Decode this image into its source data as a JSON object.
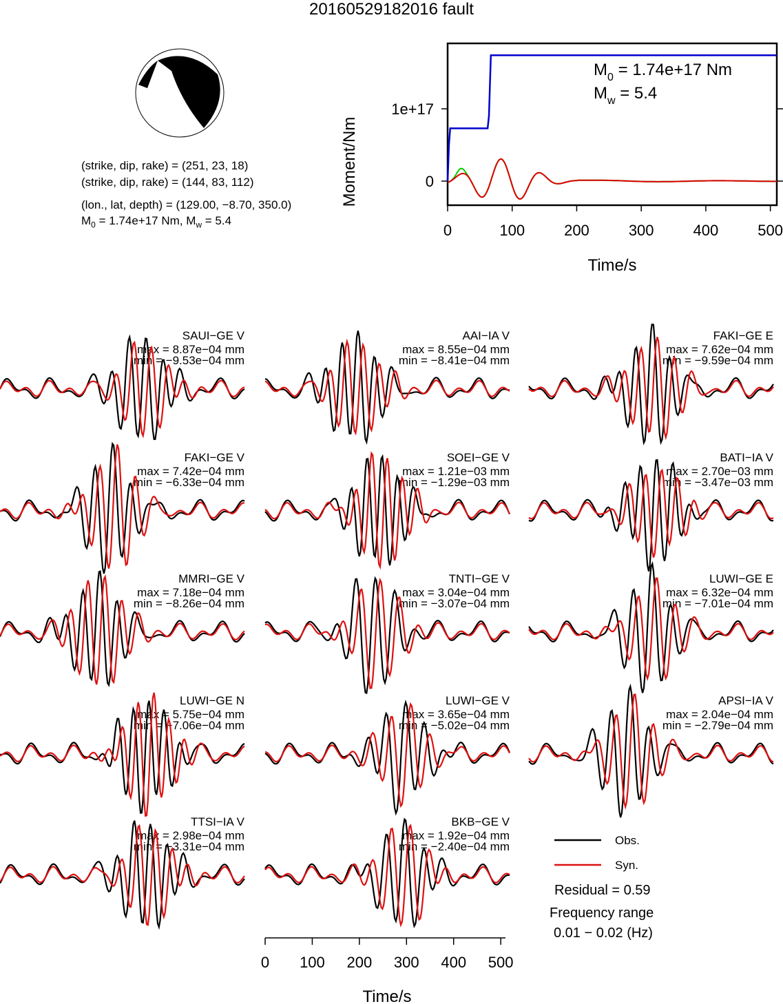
{
  "title": "20160529182016 fault",
  "mechanism": {
    "line1": "(strike, dip, rake) = (251, 23, 18)",
    "line2": "(strike, dip, rake) = (144, 83, 112)",
    "line3": "(lon., lat, depth) = (129.00, −8.70, 350.0)",
    "line4_m0": "M",
    "line4_m0_sub": "0",
    "line4_rest": " = 1.74e+17 Nm, M",
    "line4_mw_sub": "w",
    "line4_end": " = 5.4"
  },
  "moment_panel": {
    "m0_label": "M",
    "m0_sub": "0",
    "m0_value": " = 1.74e+17 Nm",
    "mw_label": "M",
    "mw_sub": "w",
    "mw_value": " = 5.4",
    "colors": {
      "moment": "#0000cc",
      "stf_red": "#dd0000",
      "stf_green": "#00cc00"
    }
  },
  "waveform_colors": {
    "obs": "#000000",
    "syn": "#dd1111"
  },
  "legend": {
    "obs": "Obs.",
    "syn": "Syn.",
    "residual": "Residual = 0.59",
    "freq_label": "Frequency range",
    "freq_value": "0.01 − 0.02 (Hz)"
  },
  "stations": [
    {
      "name": "SAUI−GE V",
      "max": "max = 8.87e−04 mm",
      "min": "min = −9.53e−04 mm"
    },
    {
      "name": "AAI−IA V",
      "max": "max = 8.55e−04 mm",
      "min": "min = −8.41e−04 mm"
    },
    {
      "name": "FAKI−GE E",
      "max": "max = 7.62e−04 mm",
      "min": "min = −9.59e−04 mm"
    },
    {
      "name": "FAKI−GE V",
      "max": "max = 7.42e−04 mm",
      "min": "min = −6.33e−04 mm"
    },
    {
      "name": "SOEI−GE V",
      "max": "max = 1.21e−03 mm",
      "min": "min = −1.29e−03 mm"
    },
    {
      "name": "BATI−IA V",
      "max": "max = 2.70e−03 mm",
      "min": "min = −3.47e−03 mm"
    },
    {
      "name": "MMRI−GE V",
      "max": "max = 7.18e−04 mm",
      "min": "min = −8.26e−04 mm"
    },
    {
      "name": "TNTI−GE V",
      "max": "max = 3.04e−04 mm",
      "min": "min = −3.07e−04 mm"
    },
    {
      "name": "LUWI−GE E",
      "max": "max = 6.32e−04 mm",
      "min": "min = −7.01e−04 mm"
    },
    {
      "name": "LUWI−GE N",
      "max": "max = 5.75e−04 mm",
      "min": "min = −7.06e−04 mm"
    },
    {
      "name": "LUWI−GE V",
      "max": "max = 3.65e−04 mm",
      "min": "min = −5.02e−04 mm"
    },
    {
      "name": "APSI−IA V",
      "max": "max = 2.04e−04 mm",
      "min": "min = −2.79e−04 mm"
    },
    {
      "name": "TTSI−IA V",
      "max": "max = 2.98e−04 mm",
      "min": "min = −3.31e−04 mm"
    },
    {
      "name": "BKB−GE V",
      "max": "max = 1.92e−04 mm",
      "min": "min = −2.40e−04 mm"
    }
  ],
  "chart_data": [
    {
      "type": "line",
      "xlabel": "Time/s",
      "ylabel": "Moment/Nm",
      "xlim": [
        0,
        510
      ],
      "x_ticks": [
        "0",
        "100",
        "200",
        "300",
        "400",
        "500"
      ],
      "y_ticks": [
        "0",
        "1e+17"
      ],
      "series": [
        {
          "x": [
            0,
            2,
            4,
            62,
            64,
            67,
            510
          ],
          "values": [
            0,
            5e+16,
            7.3e+16,
            7.3e+16,
            9e+16,
            1.74e+17,
            1.74e+17
          ]
        }
      ]
    },
    {
      "type": "line",
      "xlabel": "Time/s",
      "xlim": [
        0,
        510
      ],
      "x_ticks": [
        "0",
        "100",
        "200",
        "300",
        "400",
        "500"
      ]
    }
  ]
}
